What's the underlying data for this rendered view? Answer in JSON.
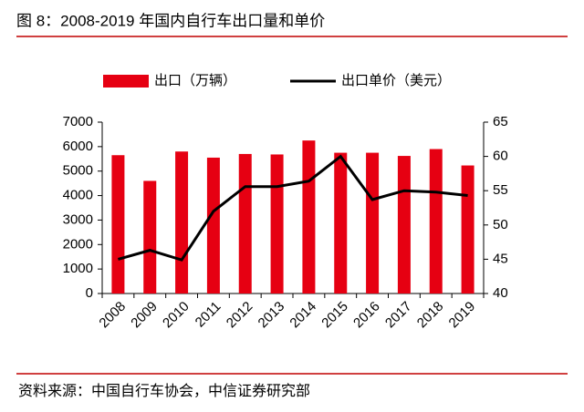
{
  "title": "图 8：2008-2019 年国内自行车出口量和单价",
  "source": "资料来源：中国自行车协会，中信证券研究部",
  "chart_data": {
    "type": "combo",
    "categories": [
      "2008",
      "2009",
      "2010",
      "2011",
      "2012",
      "2013",
      "2014",
      "2015",
      "2016",
      "2017",
      "2018",
      "2019"
    ],
    "series": [
      {
        "name": "出口（万辆）",
        "type": "bar",
        "color": "#e60012",
        "values": [
          5650,
          4600,
          5800,
          5550,
          5700,
          5680,
          6250,
          5750,
          5750,
          5620,
          5900,
          5230
        ]
      },
      {
        "name": "出口单价（美元）",
        "type": "line",
        "axis": "y2",
        "color": "#000000",
        "values": [
          45.0,
          46.3,
          44.9,
          52.0,
          55.6,
          55.6,
          56.4,
          60.0,
          53.7,
          55.0,
          54.8,
          54.3
        ]
      }
    ],
    "ylim": [
      0,
      7000
    ],
    "yticks": [
      0,
      1000,
      2000,
      3000,
      4000,
      5000,
      6000,
      7000
    ],
    "y2lim": [
      40,
      65
    ],
    "y2ticks": [
      40,
      45,
      50,
      55,
      60,
      65
    ],
    "grid": false,
    "legend": "top"
  }
}
